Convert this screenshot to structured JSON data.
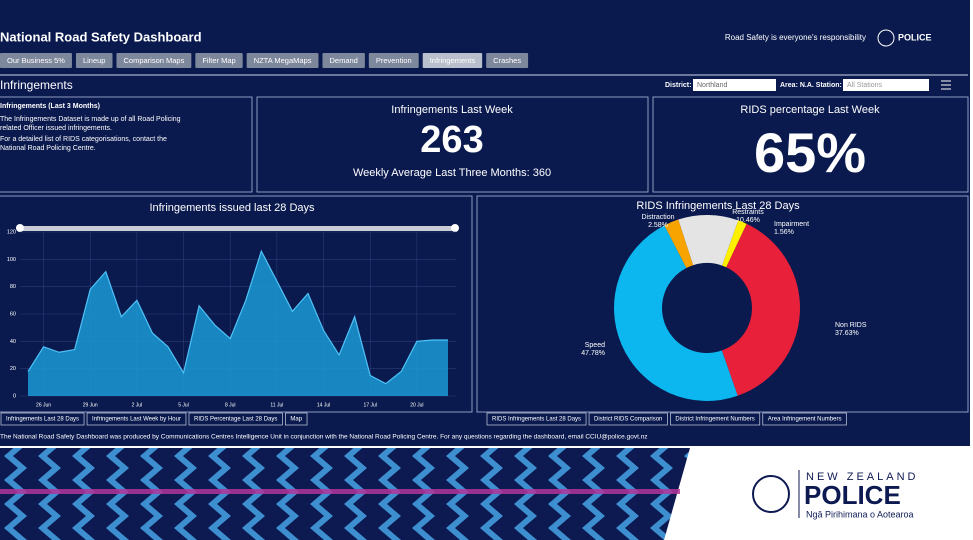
{
  "header": {
    "title": "National Road Safety Dashboard",
    "tagline": "Road Safety is everyone's responsibility",
    "logo": "POLICE"
  },
  "tabs": {
    "items": [
      "Our Business 5%",
      "Lineup",
      "Comparison Maps",
      "Filter Map",
      "NZTA MegaMaps",
      "Demand",
      "Prevention",
      "Infringements",
      "Crashes"
    ],
    "active": 7
  },
  "page_title": "Infringements",
  "filters": {
    "district_label": "District:",
    "district_value": "Northland",
    "area_label": "Area: N.A. Station:",
    "area_value": "All Stations"
  },
  "info": {
    "heading": "Infringements (Last 3 Months)",
    "paragraphs": [
      "The Infringements Dataset is made up of all Road Policing related Officer issued infringements.",
      "For a detailed list of RIDS categorisations, contact the National Road Policing Centre."
    ]
  },
  "kpi_week": {
    "title": "Infringements Last Week",
    "value": 263,
    "subtitle": "Weekly Average Last Three Months: 360"
  },
  "kpi_rids": {
    "title": "RIDS percentage Last Week",
    "value": "65%"
  },
  "infringements_chart": {
    "type": "area",
    "title": "Infringements issued last 28 Days",
    "color": "#1a9ad6",
    "categories": [
      null,
      "26 Jun",
      null,
      null,
      "29 Jun",
      null,
      null,
      "2 Jul",
      null,
      null,
      "5 Jul",
      null,
      null,
      "8 Jul",
      null,
      null,
      "11 Jul",
      null,
      null,
      "14 Jul",
      null,
      null,
      "17 Jul",
      null,
      null,
      "20 Jul",
      null,
      null
    ],
    "values": [
      18,
      36,
      32,
      34,
      78,
      91,
      58,
      70,
      46,
      36,
      17,
      66,
      52,
      42,
      70,
      106,
      84,
      62,
      75,
      48,
      30,
      58,
      15,
      9,
      18,
      40,
      41,
      41
    ],
    "ylim": [
      0,
      120
    ],
    "yticks": [
      0,
      20,
      40,
      60,
      80,
      100,
      120
    ],
    "grid": true
  },
  "rids_chart": {
    "type": "donut",
    "title": "RIDS Infringements Last 28 Days",
    "categories": [
      "Restraints",
      "Impairment",
      "Non RIDS",
      "Speed",
      "Distraction"
    ],
    "values": [
      10.46,
      1.56,
      37.63,
      47.78,
      2.58
    ],
    "value_labels": [
      "10.46%",
      "1.56%",
      "37.63%",
      "47.78%",
      "2.58%"
    ],
    "colors": [
      "#e4e4e4",
      "#fff000",
      "#e8203a",
      "#0cb6ee",
      "#f7a400"
    ]
  },
  "left_tabs": [
    "Infringements Last 28 Days",
    "Infringements Last Week by Hour",
    "RIDS Percentage Last 28 Days",
    "Map"
  ],
  "right_tabs": [
    "RIDS Infringements Last 28 Days",
    "District RIDS Comparison",
    "District Infringement Numbers",
    "Area Infringement Numbers"
  ],
  "footer": "The National Road Safety Dashboard was produced by Communications Centres Intelligence Unit in conjunction with the National Road Policing Centre. For any questions regarding the dashboard, email CCIU@police.govt.nz",
  "brand": {
    "country": "NEW ZEALAND",
    "name": "POLICE",
    "maori": "Ngā Pirihimana o Aotearoa"
  }
}
